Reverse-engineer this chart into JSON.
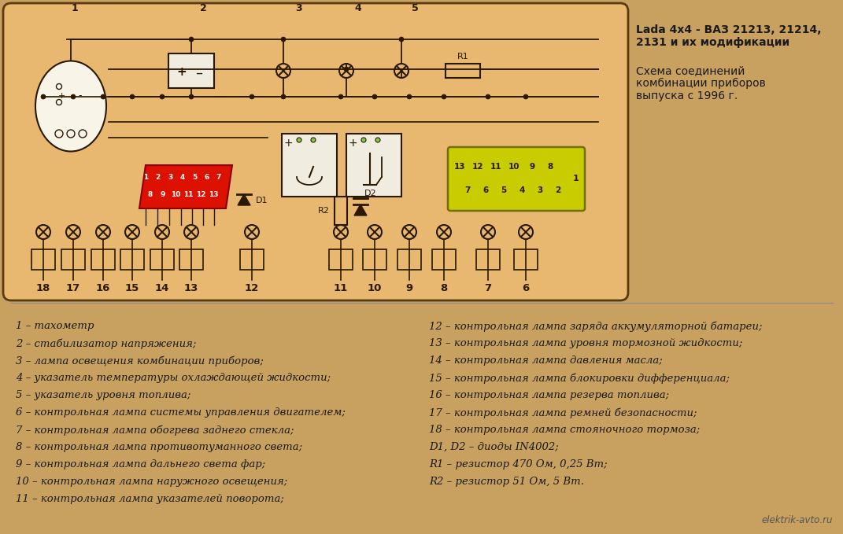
{
  "bg_color": "#c8a060",
  "diagram_bg": "#e8b870",
  "diagram_border": "#7a5820",
  "line_color": "#2a1800",
  "title_line1": "Lada 4x4 - ВАЗ 21213, 21214,",
  "title_line2": "2131 и их модификации",
  "subtitle_line1": "Схема соединений",
  "subtitle_line2": "комбинации приборов",
  "subtitle_line3": "выпуска с 1996 г.",
  "watermark": "elektrik-avto.ru",
  "left_labels": [
    "1 – тахометр",
    "2 – стабилизатор напряжения;",
    "3 – лампа освещения комбинации приборов;",
    "4 – указатель температуры охлаждающей жидкости;",
    "5 – указатель уровня топлива;",
    "6 – контрольная лампа системы управления двигателем;",
    "7 – контрольная лампа обогрева заднего стекла;",
    "8 – контрольная лампа противотуманного света;",
    "9 – контрольная лампа дальнего света фар;",
    "10 – контрольная лампа наружного освещения;",
    "11 – контрольная лампа указателей поворота;"
  ],
  "right_labels": [
    "12 – контрольная лампа заряда аккумуляторной батареи;",
    "13 – контрольная лампа уровня тормозной жидкости;",
    "14 – контрольная лампа давления масла;",
    "15 – контрольная лампа блокировки дифференциала;",
    "16 – контрольная лампа резерва топлива;",
    "17 – контрольная лампа ремней безопасности;",
    "18 – контрольная лампа стояночного тормоза;",
    "D1, D2 – диоды IN4002;",
    "R1 – резистор 470 Ом, 0,25 Вт;",
    "R2 – резистор 51 Ом, 5 Вт."
  ]
}
